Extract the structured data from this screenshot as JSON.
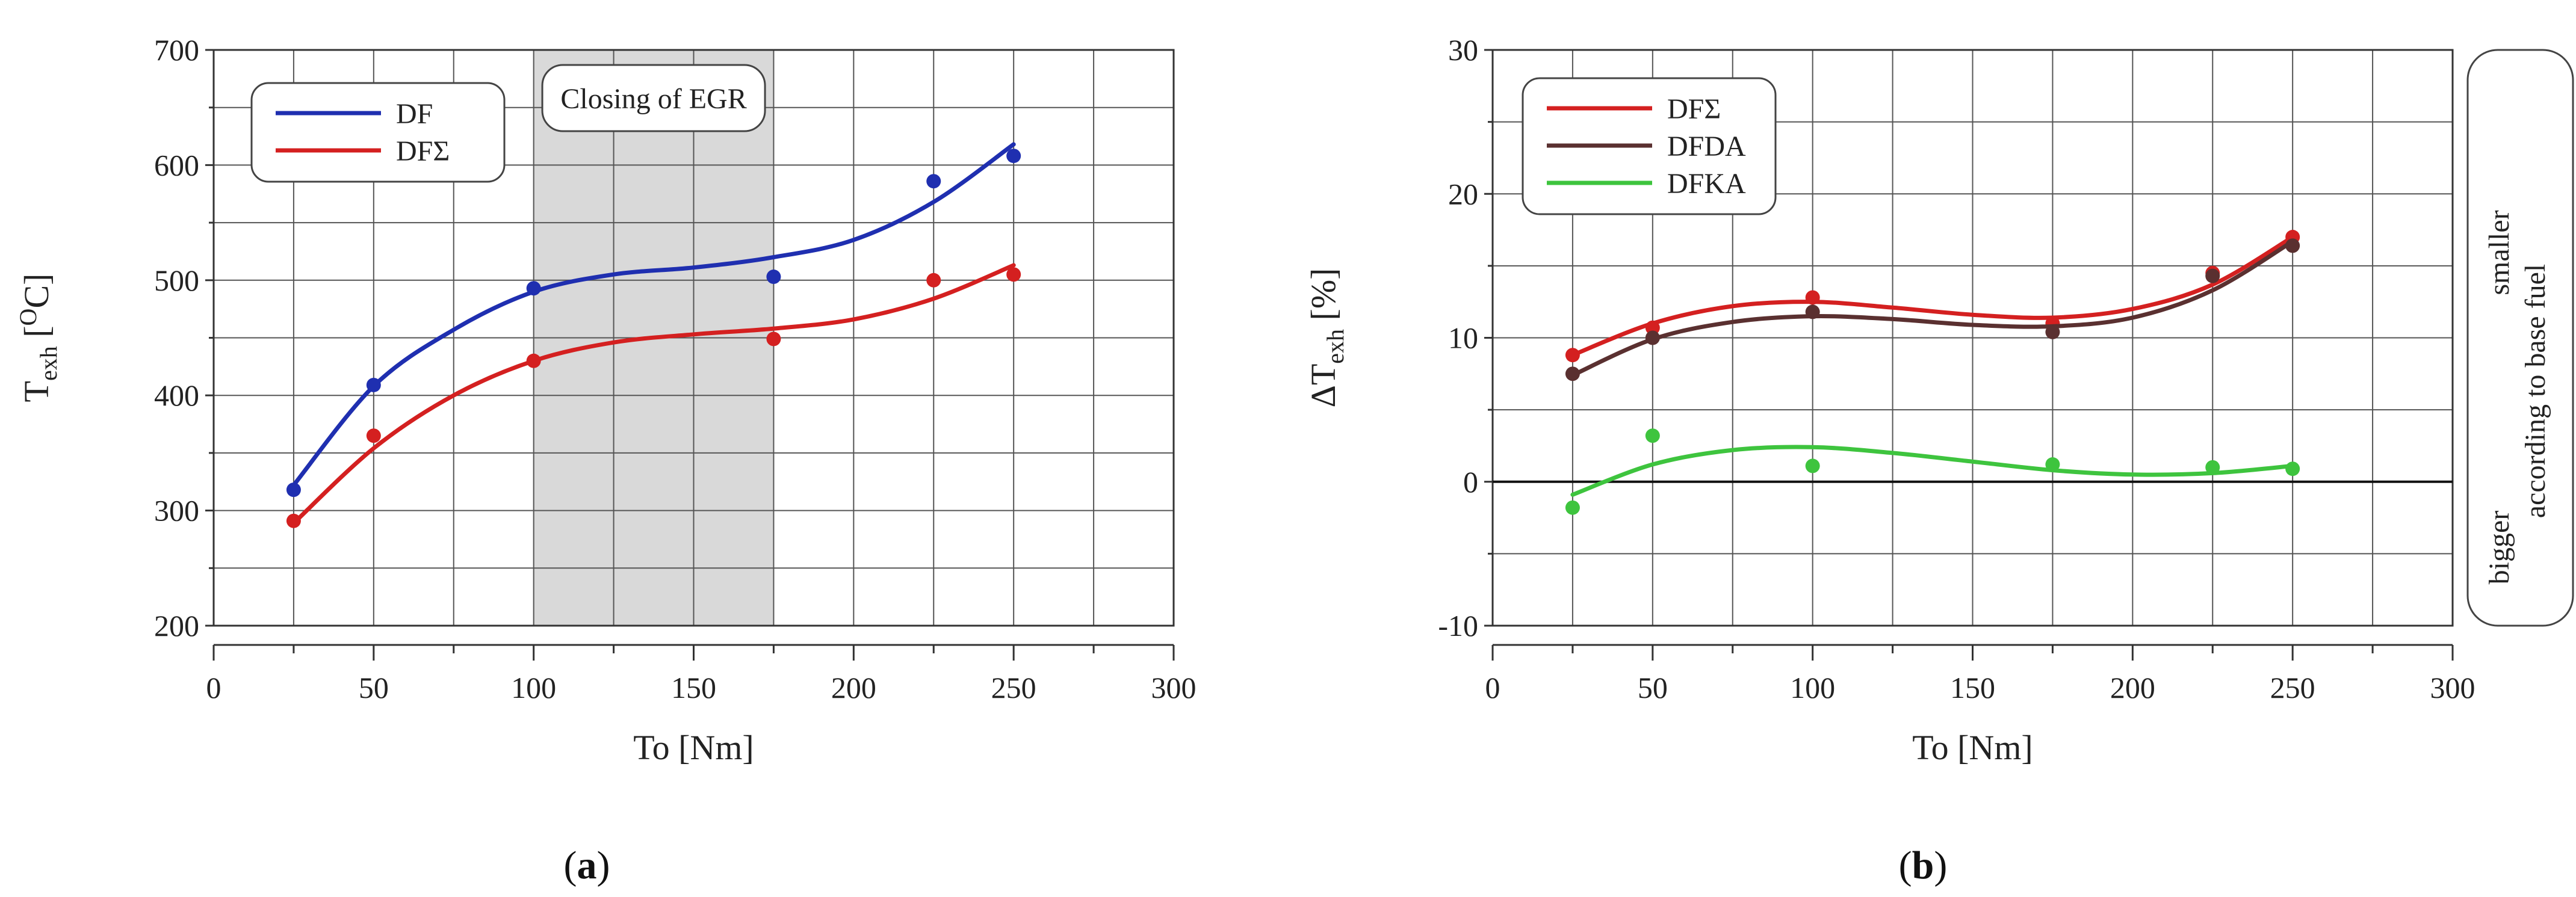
{
  "chart_data": [
    {
      "id": "a",
      "type": "line",
      "panel_label": "a",
      "xlabel": "To [Nm]",
      "ylabel_main": "T",
      "ylabel_sub": "exh",
      "ylabel_unit": " [",
      "ylabel_unit_sup": "O",
      "ylabel_unit_end": "C]",
      "xlim": [
        0,
        300
      ],
      "ylim": [
        200,
        700
      ],
      "xticks": [
        0,
        50,
        100,
        150,
        200,
        250,
        300
      ],
      "yticks": [
        200,
        300,
        400,
        500,
        600,
        700
      ],
      "grid": true,
      "shaded_region": {
        "x": [
          100,
          175
        ],
        "label": "Closing of EGR"
      },
      "legend_position": "top-left",
      "series": [
        {
          "name": "DF",
          "color": "#1f2fb0",
          "points": [
            [
              25,
              318
            ],
            [
              50,
              409
            ],
            [
              100,
              493
            ],
            [
              175,
              503
            ],
            [
              225,
              586
            ],
            [
              250,
              608
            ]
          ],
          "fit": [
            [
              25,
              322
            ],
            [
              50,
              408
            ],
            [
              75,
              457
            ],
            [
              100,
              490
            ],
            [
              125,
              505
            ],
            [
              150,
              511
            ],
            [
              175,
              520
            ],
            [
              200,
              535
            ],
            [
              225,
              568
            ],
            [
              250,
              618
            ]
          ]
        },
        {
          "name": "DFΣ",
          "color": "#d42020",
          "points": [
            [
              25,
              291
            ],
            [
              50,
              365
            ],
            [
              100,
              430
            ],
            [
              175,
              449
            ],
            [
              225,
              500
            ],
            [
              250,
              505
            ]
          ],
          "fit": [
            [
              25,
              289
            ],
            [
              50,
              354
            ],
            [
              75,
              400
            ],
            [
              100,
              430
            ],
            [
              125,
              446
            ],
            [
              150,
              453
            ],
            [
              175,
              458
            ],
            [
              200,
              466
            ],
            [
              225,
              484
            ],
            [
              250,
              513
            ]
          ]
        }
      ]
    },
    {
      "id": "b",
      "type": "line",
      "panel_label": "b",
      "xlabel": "To [Nm]",
      "ylabel_main": "ΔT",
      "ylabel_sub": "exh",
      "ylabel_unit": " [%]",
      "xlim": [
        0,
        300
      ],
      "ylim": [
        -10,
        30
      ],
      "xticks": [
        0,
        50,
        100,
        150,
        200,
        250,
        300
      ],
      "yticks": [
        -10,
        0,
        10,
        20,
        30
      ],
      "grid": true,
      "reference_line": 0,
      "legend_position": "top-left",
      "side_note": {
        "top": "smaller",
        "middle": "according to base fuel",
        "bottom": "bigger"
      },
      "series": [
        {
          "name": "DFΣ",
          "color": "#d42020",
          "points": [
            [
              25,
              8.8
            ],
            [
              50,
              10.7
            ],
            [
              100,
              12.8
            ],
            [
              175,
              11.0
            ],
            [
              225,
              14.5
            ],
            [
              250,
              17.0
            ]
          ],
          "fit": [
            [
              25,
              8.8
            ],
            [
              50,
              11.0
            ],
            [
              75,
              12.2
            ],
            [
              100,
              12.5
            ],
            [
              125,
              12.1
            ],
            [
              150,
              11.6
            ],
            [
              175,
              11.4
            ],
            [
              200,
              12.0
            ],
            [
              225,
              13.7
            ],
            [
              250,
              17.0
            ]
          ]
        },
        {
          "name": "DFDA",
          "color": "#5a3030",
          "points": [
            [
              25,
              7.5
            ],
            [
              50,
              10.0
            ],
            [
              100,
              11.8
            ],
            [
              175,
              10.4
            ],
            [
              225,
              14.3
            ],
            [
              250,
              16.4
            ]
          ],
          "fit": [
            [
              25,
              7.4
            ],
            [
              50,
              9.9
            ],
            [
              75,
              11.1
            ],
            [
              100,
              11.5
            ],
            [
              125,
              11.3
            ],
            [
              150,
              10.9
            ],
            [
              175,
              10.8
            ],
            [
              200,
              11.4
            ],
            [
              225,
              13.3
            ],
            [
              250,
              16.7
            ]
          ]
        },
        {
          "name": "DFKA",
          "color": "#3ec43e",
          "points": [
            [
              25,
              -1.8
            ],
            [
              50,
              3.2
            ],
            [
              100,
              1.1
            ],
            [
              175,
              1.2
            ],
            [
              225,
              1.0
            ],
            [
              250,
              0.9
            ]
          ],
          "fit": [
            [
              25,
              -0.9
            ],
            [
              50,
              1.2
            ],
            [
              75,
              2.2
            ],
            [
              100,
              2.4
            ],
            [
              125,
              2.0
            ],
            [
              150,
              1.4
            ],
            [
              175,
              0.8
            ],
            [
              200,
              0.5
            ],
            [
              225,
              0.6
            ],
            [
              250,
              1.1
            ]
          ]
        }
      ]
    }
  ]
}
